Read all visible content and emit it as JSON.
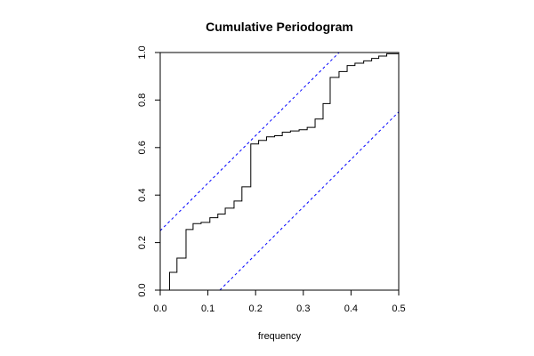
{
  "chart_data": {
    "type": "line",
    "title": "Cumulative Periodogram",
    "xlabel": "frequency",
    "ylabel": "",
    "xlim": [
      0,
      0.5
    ],
    "ylim": [
      0,
      1
    ],
    "x_ticks": [
      "0.0",
      "0.1",
      "0.2",
      "0.3",
      "0.4",
      "0.5"
    ],
    "y_ticks": [
      "0.0",
      "0.2",
      "0.4",
      "0.6",
      "0.8",
      "1.0"
    ],
    "grid": false,
    "series": [
      {
        "style": "step",
        "color": "#000000",
        "x": [
          0.0,
          0.0195,
          0.0351,
          0.0541,
          0.0689,
          0.0857,
          0.1041,
          0.1208,
          0.1363,
          0.1548,
          0.1713,
          0.1899,
          0.2063,
          0.2229,
          0.2398,
          0.2559,
          0.273,
          0.2912,
          0.3081,
          0.3247,
          0.3414,
          0.3563,
          0.3749,
          0.3919,
          0.4083,
          0.4266,
          0.4433,
          0.4582,
          0.4749,
          0.5
        ],
        "y": [
          0.0,
          0.075,
          0.135,
          0.255,
          0.28,
          0.285,
          0.305,
          0.32,
          0.345,
          0.375,
          0.435,
          0.615,
          0.63,
          0.645,
          0.65,
          0.665,
          0.67,
          0.675,
          0.685,
          0.72,
          0.785,
          0.895,
          0.92,
          0.945,
          0.955,
          0.965,
          0.975,
          0.985,
          0.995,
          1.0
        ]
      },
      {
        "style": "dashed",
        "color": "#0000ff",
        "x": [
          0.0,
          0.375
        ],
        "y": [
          0.25,
          1.0
        ]
      },
      {
        "style": "dashed",
        "color": "#0000ff",
        "x": [
          0.125,
          0.5
        ],
        "y": [
          0.0,
          0.75
        ]
      }
    ]
  }
}
